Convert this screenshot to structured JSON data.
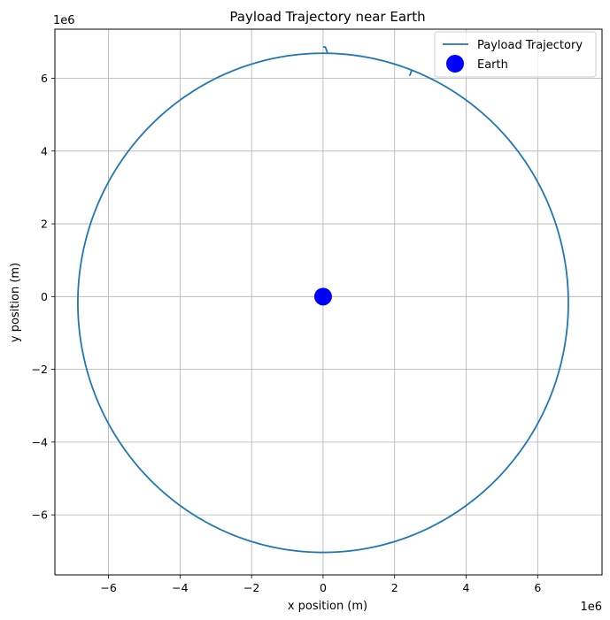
{
  "chart_data": {
    "type": "line",
    "title": "Payload Trajectory near Earth",
    "xlabel": "x position (m)",
    "ylabel": "y position (m)",
    "x_offset_label": "1e6",
    "y_offset_label": "1e6",
    "xlim": [
      -7.5,
      7.8
    ],
    "ylim": [
      -7.65,
      7.35
    ],
    "xticks": [
      -6,
      -4,
      -2,
      0,
      2,
      4,
      6
    ],
    "xtick_labels": [
      "−6",
      "−4",
      "−2",
      "0",
      "2",
      "4",
      "6"
    ],
    "yticks": [
      -6,
      -4,
      -2,
      0,
      2,
      4,
      6
    ],
    "ytick_labels": [
      "−6",
      "−4",
      "−2",
      "0",
      "2",
      "4",
      "6"
    ],
    "grid": true,
    "legend_position": "top-right",
    "series": [
      {
        "name": "Payload Trajectory",
        "color": "#1f77b4",
        "orbit": {
          "semi_major_axis": 6.86,
          "eccentricity": 0.025,
          "start_point": [
            0.0,
            6.86
          ],
          "end_point": [
            2.42,
            6.07
          ],
          "direction": "clockwise",
          "note_units": "1e6 m"
        }
      },
      {
        "name": "Earth",
        "type": "scatter",
        "color": "#0000ff",
        "points": [
          [
            0,
            0
          ]
        ]
      }
    ]
  }
}
